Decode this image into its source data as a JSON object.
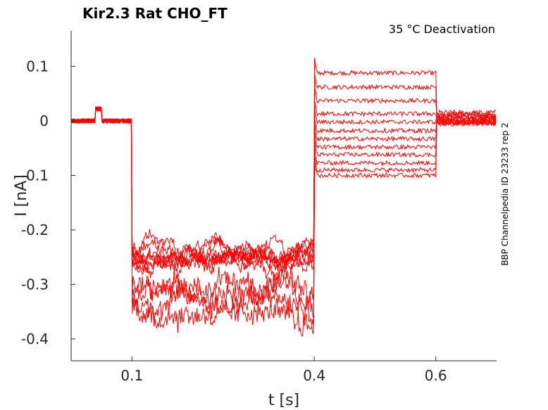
{
  "chart_data": {
    "type": "line",
    "title": "Kir2.3  Rat  CHO_FT",
    "annotation": "35 °C  Deactivation",
    "side_label": "BBP Channelpedia ID 23233 rep 2",
    "xlabel": "t [s]",
    "ylabel": "I [nA]",
    "xlim": [
      0.0,
      0.7
    ],
    "ylim": [
      -0.44,
      0.165
    ],
    "xticks": [
      {
        "value": 0.1,
        "label": "0.1"
      },
      {
        "value": 0.4,
        "label": "0.4"
      },
      {
        "value": 0.6,
        "label": "0.6"
      }
    ],
    "yticks": [
      {
        "value": 0.1,
        "label": "0.1"
      },
      {
        "value": 0,
        "label": "0"
      },
      {
        "value": -0.1,
        "label": "-0.1"
      },
      {
        "value": -0.2,
        "label": "-0.2"
      },
      {
        "value": -0.3,
        "label": "-0.3"
      },
      {
        "value": -0.4,
        "label": "-0.4"
      }
    ],
    "grid": false,
    "line_color": "#ff0000",
    "protocol_times_s": {
      "step1_start": 0.1,
      "step2_start": 0.4,
      "step2_end": 0.6
    },
    "series": [
      {
        "values_by_phase": {
          "baseline": 0.0,
          "step1": -0.245,
          "step2": 0.088,
          "tail": 0.015
        }
      },
      {
        "values_by_phase": {
          "baseline": 0.0,
          "step1": -0.24,
          "step2": 0.062,
          "tail": 0.012
        }
      },
      {
        "values_by_phase": {
          "baseline": 0.0,
          "step1": -0.25,
          "step2": 0.037,
          "tail": 0.01
        }
      },
      {
        "values_by_phase": {
          "baseline": 0.0,
          "step1": -0.255,
          "step2": 0.013,
          "tail": 0.007
        }
      },
      {
        "values_by_phase": {
          "baseline": 0.0,
          "step1": -0.235,
          "step2": -0.002,
          "tail": 0.005
        }
      },
      {
        "values_by_phase": {
          "baseline": 0.0,
          "step1": -0.26,
          "step2": -0.018,
          "tail": 0.003
        }
      },
      {
        "values_by_phase": {
          "baseline": 0.0,
          "step1": -0.245,
          "step2": -0.033,
          "tail": 0.001
        }
      },
      {
        "values_by_phase": {
          "baseline": 0.0,
          "step1": -0.25,
          "step2": -0.048,
          "tail": -0.001
        }
      },
      {
        "values_by_phase": {
          "baseline": 0.0,
          "step1": -0.3,
          "step2": -0.062,
          "tail": -0.002
        }
      },
      {
        "values_by_phase": {
          "baseline": 0.0,
          "step1": -0.33,
          "step2": -0.077,
          "tail": -0.003
        }
      },
      {
        "values_by_phase": {
          "baseline": 0.0,
          "step1": -0.345,
          "step2": -0.09,
          "tail": -0.004
        }
      },
      {
        "values_by_phase": {
          "baseline": 0.0,
          "step1": -0.32,
          "step2": -0.1,
          "tail": -0.005
        }
      }
    ]
  }
}
